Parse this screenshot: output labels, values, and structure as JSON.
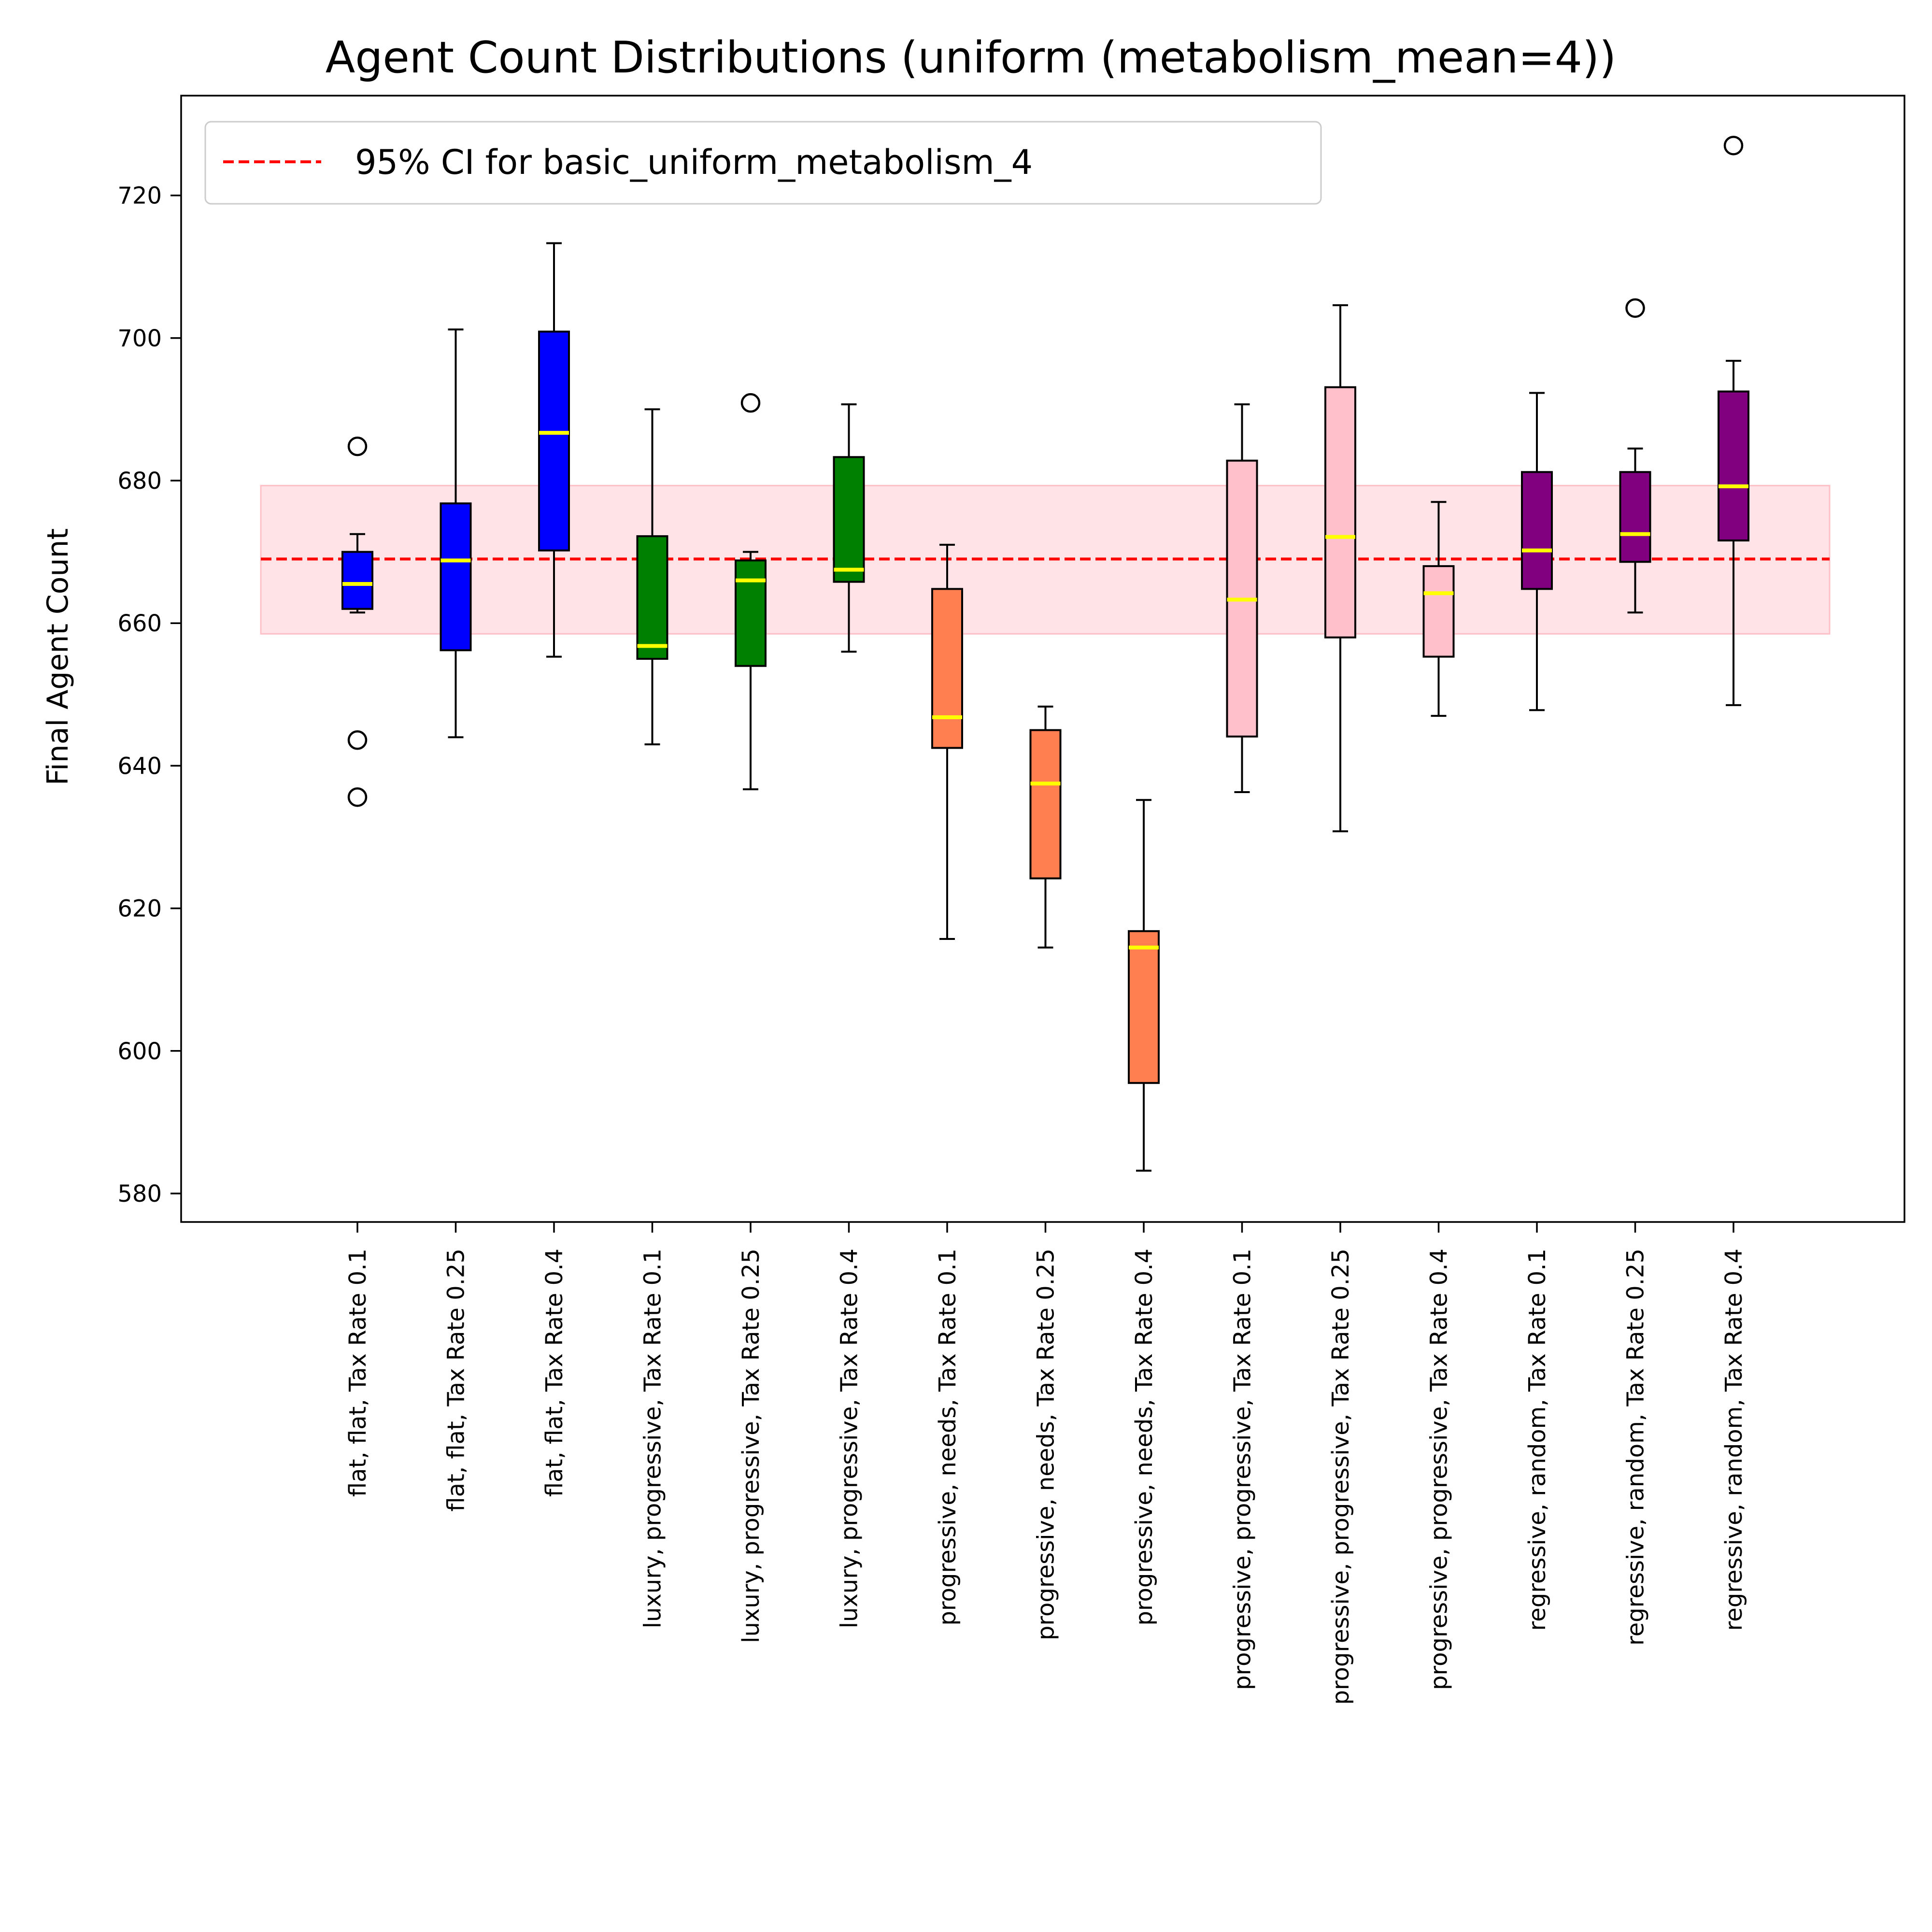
{
  "chart_data": {
    "type": "box",
    "title": "Agent Count Distributions (uniform (metabolism_mean=4))",
    "xlabel": "",
    "ylabel": "Final Agent Count",
    "ylim": [
      576,
      734
    ],
    "yticks": [
      580,
      600,
      620,
      640,
      660,
      680,
      700,
      720
    ],
    "yticklabels": [
      "580",
      "600",
      "620",
      "640",
      "660",
      "680",
      "700",
      "720"
    ],
    "grid": false,
    "legend": {
      "placement": "top-left",
      "entries": [
        {
          "label": "95% CI for basic_uniform_metabolism_4",
          "color": "#ff0000",
          "style": "dashed"
        }
      ]
    },
    "reference": {
      "mean": 669,
      "ci_low": 658.5,
      "ci_high": 679.3,
      "line_color": "#ff0000",
      "band_color": "#ffc0c8"
    },
    "median_color": "#ffff00",
    "categories": [
      "flat, flat, Tax Rate 0.1",
      "flat, flat, Tax Rate 0.25",
      "flat, flat, Tax Rate 0.4",
      "luxury, progressive, Tax Rate 0.1",
      "luxury, progressive, Tax Rate 0.25",
      "luxury, progressive, Tax Rate 0.4",
      "progressive, needs, Tax Rate 0.1",
      "progressive, needs, Tax Rate 0.25",
      "progressive, needs, Tax Rate 0.4",
      "progressive, progressive, Tax Rate 0.1",
      "progressive, progressive, Tax Rate 0.25",
      "progressive, progressive, Tax Rate 0.4",
      "regressive, random, Tax Rate 0.1",
      "regressive, random, Tax Rate 0.25",
      "regressive, random, Tax Rate 0.4"
    ],
    "boxes": [
      {
        "whislo": 661.5,
        "q1": 662,
        "med": 665.5,
        "q3": 670,
        "whishi": 672.5,
        "fliers": [
          684.8,
          643.6,
          635.6
        ],
        "color": "#0000ff"
      },
      {
        "whislo": 644,
        "q1": 656.2,
        "med": 668.8,
        "q3": 676.8,
        "whishi": 701.2,
        "fliers": [],
        "color": "#0000ff"
      },
      {
        "whislo": 655.3,
        "q1": 670.2,
        "med": 686.7,
        "q3": 700.9,
        "whishi": 713.3,
        "fliers": [],
        "color": "#0000ff"
      },
      {
        "whislo": 643,
        "q1": 655,
        "med": 656.8,
        "q3": 672.2,
        "whishi": 690,
        "fliers": [],
        "color": "#008000"
      },
      {
        "whislo": 636.7,
        "q1": 654,
        "med": 666,
        "q3": 668.8,
        "whishi": 670,
        "fliers": [
          690.9
        ],
        "color": "#008000"
      },
      {
        "whislo": 656,
        "q1": 665.8,
        "med": 667.5,
        "q3": 683.3,
        "whishi": 690.7,
        "fliers": [],
        "color": "#008000"
      },
      {
        "whislo": 615.7,
        "q1": 642.5,
        "med": 646.8,
        "q3": 664.8,
        "whishi": 671,
        "fliers": [],
        "color": "#ff7f50"
      },
      {
        "whislo": 614.5,
        "q1": 624.2,
        "med": 637.5,
        "q3": 645,
        "whishi": 648.3,
        "fliers": [],
        "color": "#ff7f50"
      },
      {
        "whislo": 583.2,
        "q1": 595.5,
        "med": 614.5,
        "q3": 616.8,
        "whishi": 635.2,
        "fliers": [],
        "color": "#ff7f50"
      },
      {
        "whislo": 636.3,
        "q1": 644.1,
        "med": 663.3,
        "q3": 682.8,
        "whishi": 690.7,
        "fliers": [],
        "color": "#ffc0cb"
      },
      {
        "whislo": 630.8,
        "q1": 658,
        "med": 672.1,
        "q3": 693.1,
        "whishi": 704.6,
        "fliers": [],
        "color": "#ffc0cb"
      },
      {
        "whislo": 647,
        "q1": 655.3,
        "med": 664.2,
        "q3": 668,
        "whishi": 677,
        "fliers": [],
        "color": "#ffc0cb"
      },
      {
        "whislo": 647.8,
        "q1": 664.8,
        "med": 670.2,
        "q3": 681.2,
        "whishi": 692.3,
        "fliers": [],
        "color": "#800080"
      },
      {
        "whislo": 661.5,
        "q1": 668.6,
        "med": 672.5,
        "q3": 681.2,
        "whishi": 684.5,
        "fliers": [
          704.2
        ],
        "color": "#800080"
      },
      {
        "whislo": 648.5,
        "q1": 671.6,
        "med": 679.2,
        "q3": 692.5,
        "whishi": 696.8,
        "fliers": [
          727
        ],
        "color": "#800080"
      }
    ]
  }
}
